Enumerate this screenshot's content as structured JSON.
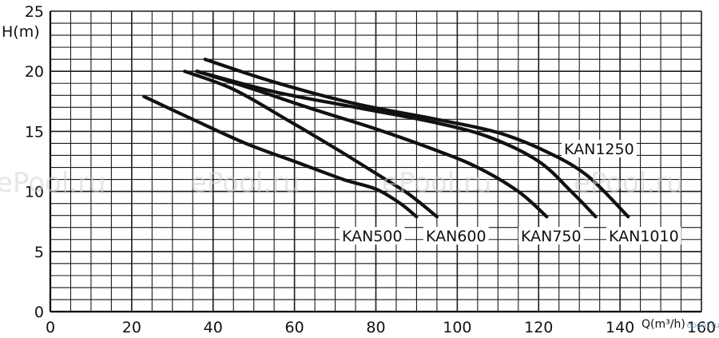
{
  "chart_data": {
    "type": "line",
    "title": "",
    "xlabel": "Q(m³/h)",
    "ylabel": "H(m)",
    "xlim": [
      0,
      160
    ],
    "ylim": [
      0,
      25
    ],
    "xticks": [
      0,
      20,
      40,
      60,
      80,
      100,
      120,
      140,
      160
    ],
    "yticks": [
      0,
      5,
      10,
      15,
      20,
      25
    ],
    "grid": true,
    "legend": "inline labels",
    "series": [
      {
        "name": "KAN500",
        "x": [
          23,
          35,
          48,
          60,
          72,
          80,
          86,
          90
        ],
        "y": [
          17.9,
          16.0,
          14.0,
          12.5,
          11.0,
          10.2,
          9.0,
          7.9
        ]
      },
      {
        "name": "KAN600",
        "x": [
          33,
          45,
          58,
          70,
          80,
          88,
          95
        ],
        "y": [
          20.0,
          18.5,
          16.0,
          13.6,
          11.5,
          9.8,
          7.9
        ]
      },
      {
        "name": "KAN750",
        "x": [
          36,
          50,
          65,
          80,
          95,
          105,
          115,
          122
        ],
        "y": [
          20.0,
          18.5,
          16.8,
          15.2,
          13.4,
          12.0,
          10.0,
          7.9
        ]
      },
      {
        "name": "KAN1010",
        "x": [
          36,
          55,
          75,
          95,
          108,
          120,
          128,
          134
        ],
        "y": [
          20.0,
          18.3,
          17.0,
          15.7,
          14.5,
          12.5,
          10.0,
          7.9
        ]
      },
      {
        "name": "KAN1250",
        "x": [
          38,
          55,
          75,
          95,
          110,
          122,
          132,
          142
        ],
        "y": [
          21.0,
          19.1,
          17.3,
          16.0,
          14.9,
          13.3,
          11.3,
          7.9
        ]
      }
    ],
    "series_colors": [
      "#111111"
    ],
    "watermark": "ePool.ru",
    "corner_watermark": "epool.ru"
  }
}
